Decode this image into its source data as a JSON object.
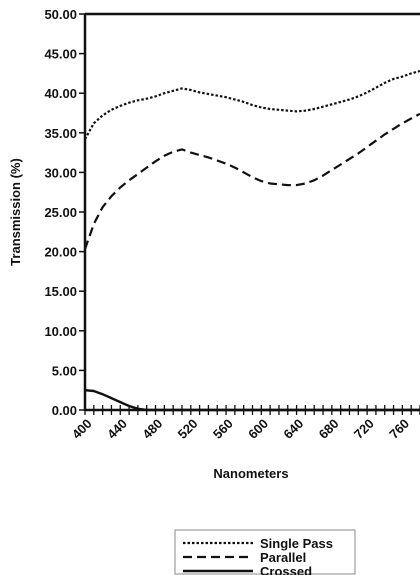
{
  "chart_data": {
    "type": "line",
    "xlabel": "Nanometers",
    "ylabel": "Transmission (%)",
    "xlim": [
      400,
      780
    ],
    "ylim": [
      0,
      50
    ],
    "x_ticks": [
      400,
      440,
      480,
      520,
      560,
      600,
      640,
      680,
      720,
      760
    ],
    "y_tick_labels": [
      "0.00",
      "5.00",
      "10.00",
      "15.00",
      "20.00",
      "25.00",
      "30.00",
      "35.00",
      "40.00",
      "45.00",
      "50.00"
    ],
    "legend_position": "bottom-center",
    "series": [
      {
        "name": "Single Pass",
        "style": "dotted",
        "x": [
          400,
          410,
          420,
          430,
          440,
          450,
          460,
          470,
          480,
          490,
          500,
          510,
          520,
          530,
          540,
          550,
          560,
          570,
          580,
          590,
          600,
          610,
          620,
          630,
          640,
          650,
          660,
          670,
          680,
          690,
          700,
          710,
          720,
          730,
          740,
          750,
          760,
          770,
          780
        ],
        "values": [
          34.2,
          36.2,
          37.2,
          37.9,
          38.4,
          38.8,
          39.1,
          39.3,
          39.6,
          40.0,
          40.3,
          40.6,
          40.4,
          40.1,
          39.9,
          39.7,
          39.5,
          39.2,
          38.9,
          38.5,
          38.2,
          38.0,
          37.9,
          37.8,
          37.7,
          37.8,
          38.0,
          38.3,
          38.6,
          38.9,
          39.2,
          39.6,
          40.1,
          40.7,
          41.3,
          41.8,
          42.1,
          42.5,
          42.8
        ]
      },
      {
        "name": "Parallel",
        "style": "dashed",
        "x": [
          400,
          410,
          420,
          430,
          440,
          450,
          460,
          470,
          480,
          490,
          500,
          510,
          520,
          530,
          540,
          550,
          560,
          570,
          580,
          590,
          600,
          610,
          620,
          630,
          640,
          650,
          660,
          670,
          680,
          690,
          700,
          710,
          720,
          730,
          740,
          750,
          760,
          770,
          780
        ],
        "values": [
          20.3,
          23.5,
          25.6,
          27.0,
          28.1,
          29.0,
          29.8,
          30.6,
          31.4,
          32.1,
          32.6,
          32.9,
          32.5,
          32.2,
          31.9,
          31.5,
          31.1,
          30.6,
          30.0,
          29.4,
          28.9,
          28.6,
          28.5,
          28.4,
          28.4,
          28.6,
          29.0,
          29.6,
          30.3,
          31.0,
          31.7,
          32.4,
          33.2,
          34.0,
          34.8,
          35.5,
          36.2,
          36.8,
          37.4
        ]
      },
      {
        "name": "Crossed",
        "style": "solid",
        "x": [
          400,
          410,
          420,
          430,
          440,
          450,
          460,
          470,
          480,
          490,
          500,
          510,
          520,
          530,
          540,
          550,
          560,
          570,
          580,
          590,
          600,
          610,
          620,
          630,
          640,
          650,
          660,
          670,
          680,
          690,
          700,
          710,
          720,
          730,
          740,
          750,
          760,
          770,
          780
        ],
        "values": [
          2.5,
          2.4,
          2.0,
          1.5,
          1.0,
          0.5,
          0.15,
          0.0,
          0.0,
          0.0,
          0.0,
          0.0,
          0.0,
          0.0,
          0.0,
          0.0,
          0.0,
          0.0,
          0.0,
          0.0,
          0.0,
          0.0,
          0.0,
          0.0,
          0.0,
          0.0,
          0.0,
          0.0,
          0.0,
          0.0,
          0.0,
          0.0,
          0.0,
          0.0,
          0.0,
          0.0,
          0.0,
          0.0,
          0.0
        ]
      }
    ]
  }
}
